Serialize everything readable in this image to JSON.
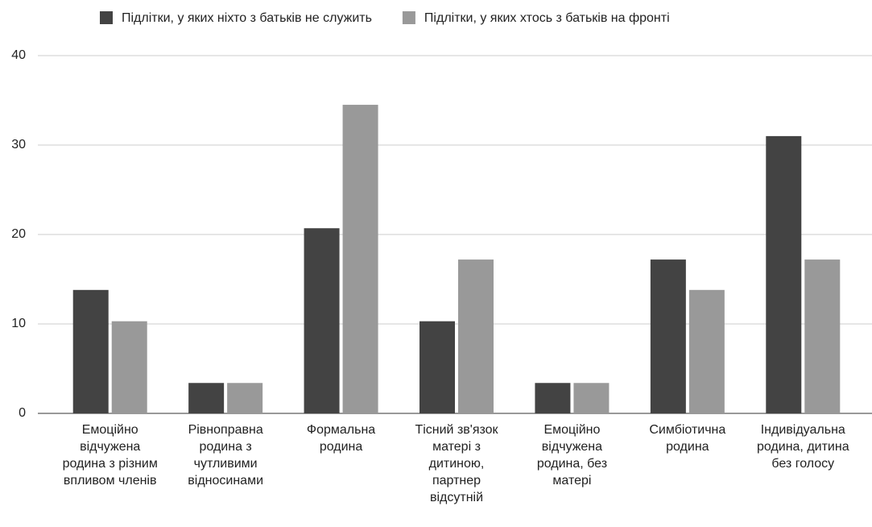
{
  "chart_data": {
    "type": "bar",
    "categories": [
      "Емоційно відчужена родина з різним впливом членів",
      "Рівноправна родина з чутливими відносинами",
      "Формальна родина",
      "Тісний зв'язок матері з дитиною, партнер відсутній",
      "Емоційно відчужена родина, без матері",
      "Симбіотична родина",
      "Індивідуальна родина, дитина без голосу"
    ],
    "series": [
      {
        "name": "Підлітки, у яких ніхто з батьків не служить",
        "color": "#434343",
        "values": [
          13.8,
          3.4,
          20.7,
          10.3,
          3.4,
          17.2,
          31.0
        ]
      },
      {
        "name": "Підлітки, у яких хтось з батьків на фронті",
        "color": "#999999",
        "values": [
          10.3,
          3.4,
          34.5,
          17.2,
          3.4,
          13.8,
          17.2
        ]
      }
    ],
    "ylim": [
      0,
      40
    ],
    "yticks": [
      0,
      10,
      20,
      30,
      40
    ],
    "grid": true,
    "legend": "top"
  }
}
